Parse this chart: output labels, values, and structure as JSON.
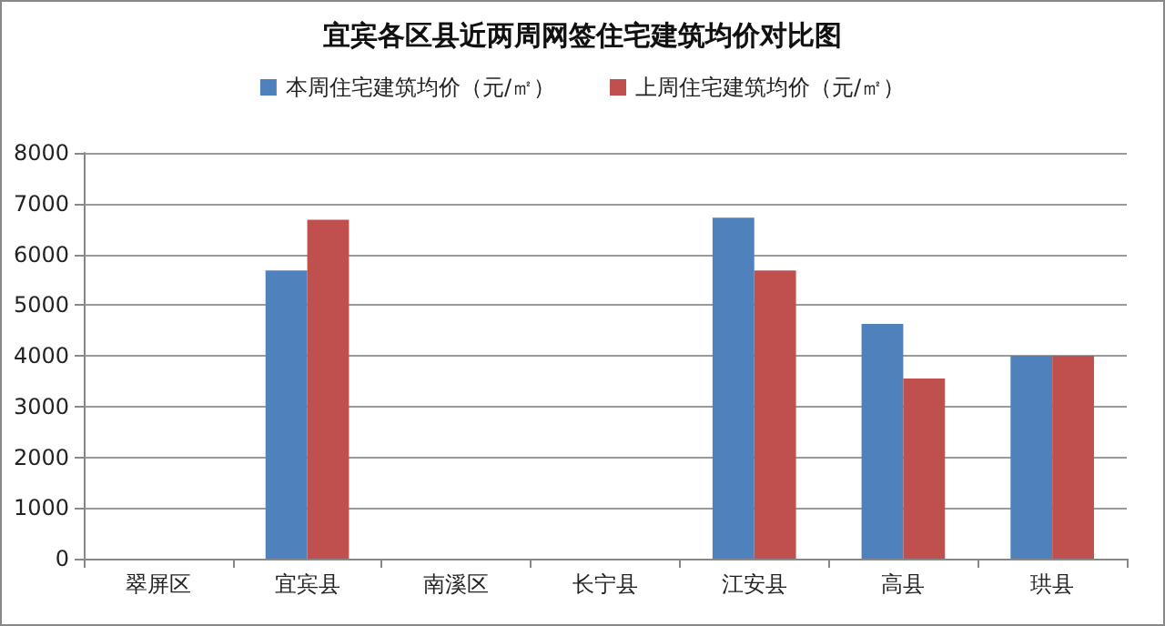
{
  "chart_data": {
    "type": "bar",
    "title": "宜宾各区县近两周网签住宅建筑均价对比图",
    "categories": [
      "翠屏区",
      "宜宾县",
      "南溪区",
      "长宁县",
      "江安县",
      "高县",
      "珙县"
    ],
    "series": [
      {
        "name": "本周住宅建筑均价（元/㎡）",
        "color": "#4f81bd",
        "values": [
          null,
          5680,
          null,
          null,
          6720,
          4630,
          4000
        ]
      },
      {
        "name": "上周住宅建筑均价（元/㎡）",
        "color": "#c0504d",
        "values": [
          null,
          6680,
          null,
          null,
          5680,
          3550,
          4000
        ]
      }
    ],
    "ylim": [
      0,
      8000
    ],
    "yticks": [
      0,
      1000,
      2000,
      3000,
      4000,
      5000,
      6000,
      7000,
      8000
    ],
    "grid": "y",
    "legend": "top"
  }
}
